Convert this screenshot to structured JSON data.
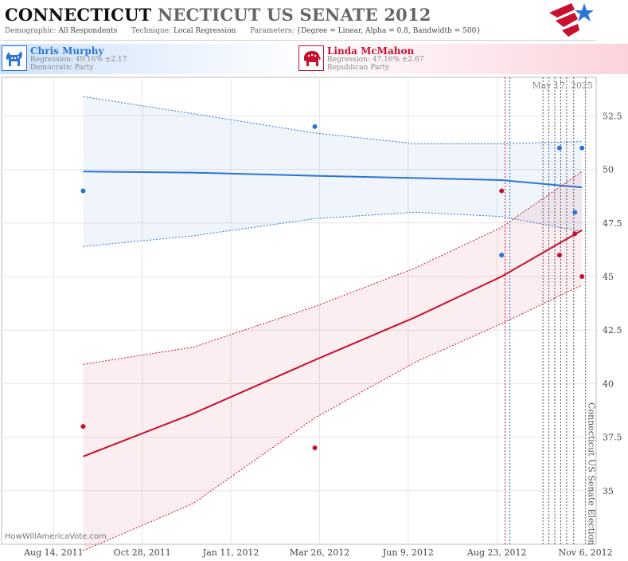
{
  "header": {
    "title_part1": "CONNECTICUT",
    "title_part2": "NECTICUT US SENATE 2012",
    "demographic_label": "Demographic:",
    "demographic_value": "All Respondents",
    "technique_label": "Technique:",
    "technique_value": "Local Regression",
    "parameters_label": "Parameters:",
    "parameters_value": "{Degree = Linear, Alpha = 0.8, Bandwidth = 500}"
  },
  "logo_icon": "stars-and-stripes-logo-icon",
  "candidates": [
    {
      "name": "Chris Murphy",
      "regression": "Regression: 49.16% ±2.17",
      "party": "Democratic Party",
      "icon": "donkey-icon",
      "color": "#2a74d6"
    },
    {
      "name": "Linda McMahon",
      "regression": "Regression: 47.16% ±2.67",
      "party": "Republican Party",
      "icon": "elephant-icon",
      "color": "#c8102e"
    }
  ],
  "watermark": "HowWillAmericaVote.com",
  "chart_data": {
    "type": "scatter",
    "date_label": "May 17, 2025",
    "election_label": "Connecticut US Senate Election",
    "election_date": "2012-11-06",
    "x_ticks": [
      "Aug 14, 2011",
      "Oct 28, 2011",
      "Jan 11, 2012",
      "Mar 26, 2012",
      "Jun 9, 2012",
      "Aug 23, 2012",
      "Nov 6, 2012"
    ],
    "y_ticks": [
      "35",
      "37.5",
      "40",
      "42.5",
      "45",
      "47.5",
      "50",
      "52.5"
    ],
    "ylim": [
      32.5,
      54.3
    ],
    "xlim": [
      "2011-07-01",
      "2012-11-15"
    ],
    "grid": true,
    "poll_dates": [
      "2012-08-30",
      "2012-09-03",
      "2012-10-01",
      "2012-10-06",
      "2012-10-11",
      "2012-10-16",
      "2012-10-21",
      "2012-10-27"
    ],
    "series": [
      {
        "name": "Chris Murphy",
        "color": "#2a74d6",
        "points": [
          {
            "x": "2011-09-08",
            "y": 49
          },
          {
            "x": "2012-03-22",
            "y": 52
          },
          {
            "x": "2012-08-27",
            "y": 46
          },
          {
            "x": "2012-10-15",
            "y": 51
          },
          {
            "x": "2012-10-28",
            "y": 48
          },
          {
            "x": "2012-11-03",
            "y": 51
          }
        ],
        "trend": [
          {
            "x": "2011-09-08",
            "y": 49.9,
            "lo": 46.4,
            "hi": 53.4
          },
          {
            "x": "2011-12-10",
            "y": 49.85,
            "lo": 46.9,
            "hi": 52.6
          },
          {
            "x": "2012-03-22",
            "y": 49.7,
            "lo": 47.7,
            "hi": 51.7
          },
          {
            "x": "2012-06-15",
            "y": 49.6,
            "lo": 48.0,
            "hi": 51.2
          },
          {
            "x": "2012-08-27",
            "y": 49.5,
            "lo": 47.8,
            "hi": 51.2
          },
          {
            "x": "2012-11-03",
            "y": 49.16,
            "lo": 47.1,
            "hi": 51.3
          }
        ]
      },
      {
        "name": "Linda McMahon",
        "color": "#c8102e",
        "points": [
          {
            "x": "2011-09-08",
            "y": 38
          },
          {
            "x": "2012-03-22",
            "y": 37
          },
          {
            "x": "2012-08-27",
            "y": 49
          },
          {
            "x": "2012-10-15",
            "y": 46
          },
          {
            "x": "2012-10-28",
            "y": 47
          },
          {
            "x": "2012-11-03",
            "y": 45
          }
        ],
        "trend": [
          {
            "x": "2011-09-08",
            "y": 36.6,
            "lo": 32.2,
            "hi": 40.9
          },
          {
            "x": "2011-12-10",
            "y": 38.6,
            "lo": 34.4,
            "hi": 41.7
          },
          {
            "x": "2012-03-22",
            "y": 41.1,
            "lo": 38.4,
            "hi": 43.6
          },
          {
            "x": "2012-06-15",
            "y": 43.1,
            "lo": 41.0,
            "hi": 45.4
          },
          {
            "x": "2012-08-27",
            "y": 45.0,
            "lo": 42.8,
            "hi": 47.3
          },
          {
            "x": "2012-11-03",
            "y": 47.16,
            "lo": 44.6,
            "hi": 49.9
          }
        ]
      }
    ]
  }
}
